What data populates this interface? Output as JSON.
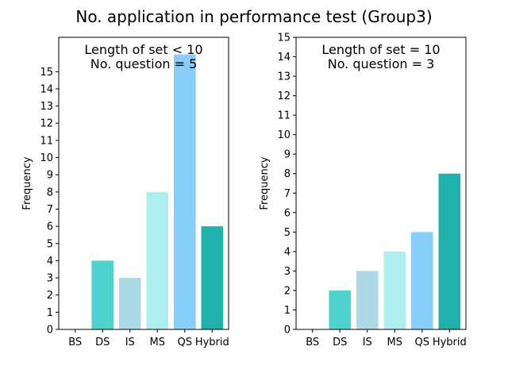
{
  "figure_title": "No. application in performance test (Group3)",
  "chart_data": [
    {
      "type": "bar",
      "title": "",
      "annotation_lines": [
        "Length of set < 10",
        "No. question = 5"
      ],
      "xlabel": "",
      "ylabel": "Frequency",
      "categories": [
        "BS",
        "DS",
        "IS",
        "MS",
        "QS",
        "Hybrid"
      ],
      "values": [
        0,
        4,
        3,
        8,
        16,
        6
      ],
      "colors": [
        "#4ed3cf",
        "#4ed3cf",
        "#add8e6",
        "#afeeee",
        "#87cefa",
        "#20b2aa"
      ],
      "ylim": [
        0,
        17
      ],
      "yticks": [
        0,
        1,
        2,
        3,
        4,
        5,
        6,
        7,
        8,
        9,
        10,
        11,
        12,
        13,
        14,
        15
      ],
      "grid": false
    },
    {
      "type": "bar",
      "title": "",
      "annotation_lines": [
        "Length of set = 10",
        "No. question = 3"
      ],
      "xlabel": "",
      "ylabel": "Frequency",
      "categories": [
        "BS",
        "DS",
        "IS",
        "MS",
        "QS",
        "Hybrid"
      ],
      "values": [
        0,
        2,
        3,
        4,
        5,
        8
      ],
      "colors": [
        "#4ed3cf",
        "#4ed3cf",
        "#add8e6",
        "#afeeee",
        "#87cefa",
        "#20b2aa"
      ],
      "ylim": [
        0,
        15
      ],
      "yticks": [
        0,
        1,
        2,
        3,
        4,
        5,
        6,
        7,
        8,
        9,
        10,
        11,
        12,
        13,
        14,
        15
      ],
      "grid": false
    }
  ]
}
